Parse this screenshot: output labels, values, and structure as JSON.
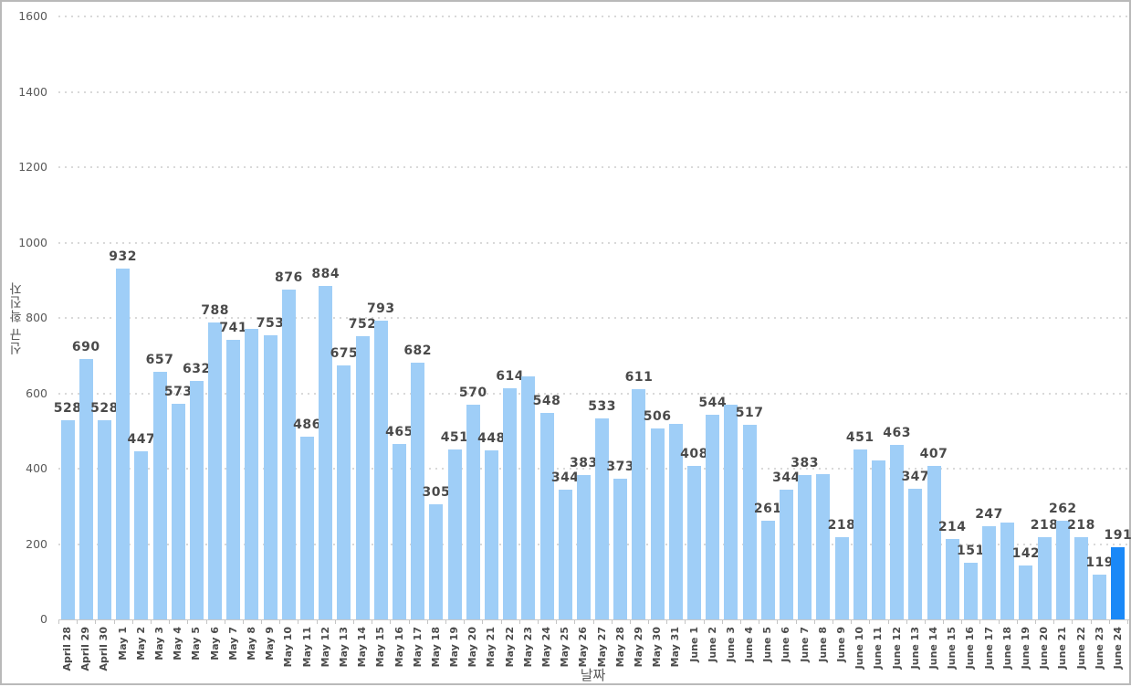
{
  "chart_data": {
    "type": "bar",
    "title": "",
    "xlabel": "날짜",
    "ylabel": "신규 확진자",
    "ylim": [
      0,
      1600
    ],
    "ytick_interval": 200,
    "ytick_labels": [
      "0",
      "200",
      "400",
      "600",
      "800",
      "1000",
      "1200",
      "1400",
      "1600"
    ],
    "grid": "dotted-horizontal",
    "legend": "none",
    "categories": [
      "April 28",
      "April 29",
      "April 30",
      "May 1",
      "May 2",
      "May 3",
      "May 4",
      "May 5",
      "May 6",
      "May 7",
      "May 8",
      "May 9",
      "May 10",
      "May 11",
      "May 12",
      "May 13",
      "May 14",
      "May 15",
      "May 16",
      "May 17",
      "May 18",
      "May 19",
      "May 20",
      "May 21",
      "May 22",
      "May 23",
      "May 24",
      "May 25",
      "May 26",
      "May 27",
      "May 28",
      "May 29",
      "May 30",
      "May 31",
      "June 1",
      "June 2",
      "June 3",
      "June 4",
      "June 5",
      "June 6",
      "June 7",
      "June 8",
      "June 9",
      "June 10",
      "June 11",
      "June 12",
      "June 13",
      "June 14",
      "June 15",
      "June 16",
      "June 17",
      "June 18",
      "June 19",
      "June 20",
      "June 21",
      "June 22",
      "June 23",
      "June 24"
    ],
    "values": [
      528,
      690,
      528,
      932,
      447,
      657,
      573,
      632,
      788,
      741,
      770,
      753,
      876,
      486,
      884,
      675,
      752,
      793,
      465,
      682,
      305,
      451,
      570,
      448,
      614,
      645,
      548,
      344,
      383,
      533,
      373,
      611,
      506,
      520,
      408,
      544,
      570,
      517,
      261,
      344,
      383,
      386,
      218,
      451,
      421,
      463,
      347,
      407,
      214,
      151,
      247,
      256,
      142,
      218,
      262,
      218,
      119,
      191
    ],
    "hidden_label_indices": [
      10,
      25,
      33,
      36,
      41,
      44,
      51
    ],
    "highlight_index": 57,
    "bar_color": "#9fcef7",
    "highlight_color": "#1a88f7",
    "label_color": "#4a4a4a",
    "axis_text_color": "#595959"
  }
}
